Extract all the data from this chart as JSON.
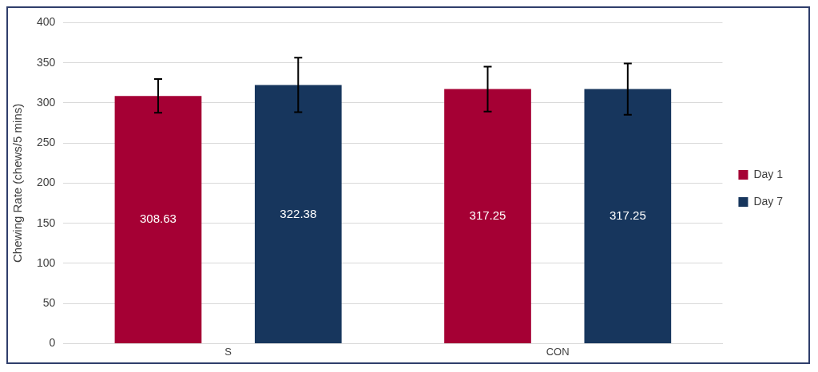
{
  "chart_data": {
    "type": "bar",
    "ylabel": "Chewing Rate (chews/5 mins)",
    "categories": [
      "S",
      "CON"
    ],
    "series": [
      {
        "name": "Day 1",
        "color": "#a50034",
        "values": [
          308.63,
          317.25
        ],
        "errors": [
          21,
          28
        ]
      },
      {
        "name": "Day 7",
        "color": "#17365d",
        "values": [
          322.38,
          317.25
        ],
        "errors": [
          34,
          32
        ]
      }
    ],
    "ylim": [
      0,
      400
    ],
    "yticks": [
      0,
      50,
      100,
      150,
      200,
      250,
      300,
      350,
      400
    ],
    "grid": "y",
    "legend": "right",
    "data_labels": true
  }
}
